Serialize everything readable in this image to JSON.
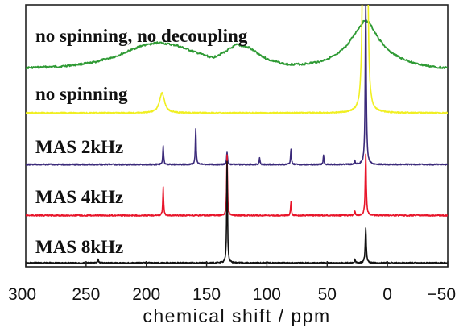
{
  "chart_data": {
    "type": "line",
    "xlabel": "chemical shift / ppm",
    "xlim": [
      300,
      -50
    ],
    "x_reversed": true,
    "xticks": [
      300,
      250,
      200,
      150,
      100,
      50,
      0,
      -50
    ],
    "xtick_labels": [
      "300",
      "250",
      "200",
      "150",
      "100",
      "50",
      "0",
      "−50"
    ],
    "series": [
      {
        "name": "no spinning, no decoupling",
        "color": "#2e9a34",
        "baseline": 0.12,
        "kind": "broad",
        "points": [
          [
            300,
            0.0
          ],
          [
            270,
            0.02
          ],
          [
            245,
            0.07
          ],
          [
            225,
            0.16
          ],
          [
            205,
            0.3
          ],
          [
            190,
            0.35
          ],
          [
            175,
            0.31
          ],
          [
            160,
            0.22
          ],
          [
            145,
            0.14
          ],
          [
            135,
            0.22
          ],
          [
            125,
            0.32
          ],
          [
            115,
            0.28
          ],
          [
            100,
            0.12
          ],
          [
            85,
            0.05
          ],
          [
            70,
            0.05
          ],
          [
            55,
            0.09
          ],
          [
            42,
            0.18
          ],
          [
            33,
            0.32
          ],
          [
            25,
            0.52
          ],
          [
            19,
            0.66
          ],
          [
            15,
            0.62
          ],
          [
            8,
            0.42
          ],
          [
            0,
            0.25
          ],
          [
            -10,
            0.14
          ],
          [
            -25,
            0.05
          ],
          [
            -40,
            0.01
          ],
          [
            -50,
            0.0
          ]
        ]
      },
      {
        "name": "no spinning",
        "color": "#f0ef22",
        "baseline": 0.02,
        "kind": "peaks",
        "peaks": [
          {
            "x": 187,
            "height": 0.28,
            "width": 2.5
          },
          {
            "x": 20,
            "height": 3.2,
            "width": 0.9
          },
          {
            "x": 17,
            "height": 3.2,
            "width": 0.9
          }
        ]
      },
      {
        "name": "MAS 2kHz",
        "color": "#3b2a7a",
        "baseline": 0.02,
        "kind": "peaks",
        "peaks": [
          {
            "x": 186,
            "height": 0.26,
            "width": 0.4
          },
          {
            "x": 159,
            "height": 0.48,
            "width": 0.4
          },
          {
            "x": 133,
            "height": 0.17,
            "width": 0.4
          },
          {
            "x": 106,
            "height": 0.09,
            "width": 0.4
          },
          {
            "x": 80,
            "height": 0.21,
            "width": 0.4
          },
          {
            "x": 53,
            "height": 0.12,
            "width": 0.4
          },
          {
            "x": 27,
            "height": 0.05,
            "width": 0.4
          },
          {
            "x": 18,
            "height": 2.2,
            "width": 0.5
          }
        ]
      },
      {
        "name": "MAS 4kHz",
        "color": "#e8152a",
        "baseline": 0.02,
        "kind": "peaks",
        "peaks": [
          {
            "x": 186,
            "height": 0.42,
            "width": 0.4
          },
          {
            "x": 133,
            "height": 0.92,
            "width": 0.4
          },
          {
            "x": 80,
            "height": 0.21,
            "width": 0.4
          },
          {
            "x": 27,
            "height": 0.07,
            "width": 0.4
          },
          {
            "x": 18,
            "height": 0.92,
            "width": 0.5
          }
        ]
      },
      {
        "name": "MAS 8kHz",
        "color": "#111111",
        "baseline": 0.02,
        "kind": "peaks",
        "peaks": [
          {
            "x": 240,
            "height": 0.05,
            "width": 0.4
          },
          {
            "x": 133,
            "height": 1.45,
            "width": 0.4
          },
          {
            "x": 27,
            "height": 0.05,
            "width": 0.4
          },
          {
            "x": 18,
            "height": 0.5,
            "width": 0.5
          }
        ]
      }
    ]
  }
}
